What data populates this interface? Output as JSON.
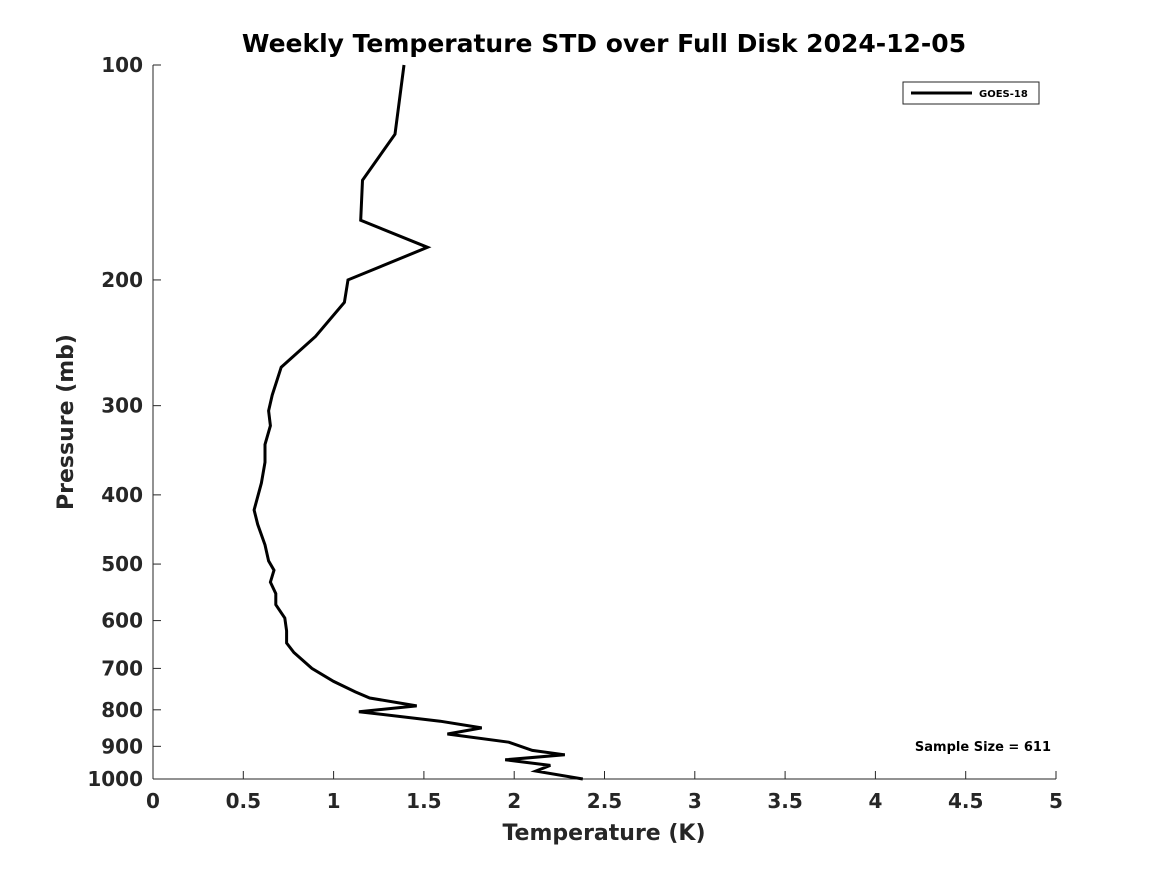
{
  "chart_data": {
    "type": "line",
    "title": "Weekly Temperature STD over Full Disk 2024-12-05",
    "xlabel": "Temperature (K)",
    "ylabel": "Pressure (mb)",
    "xlim": [
      0,
      5
    ],
    "ylim": [
      100,
      1000
    ],
    "y_scale": "log",
    "y_reversed": true,
    "x_ticks": [
      0,
      0.5,
      1,
      1.5,
      2,
      2.5,
      3,
      3.5,
      4,
      4.5,
      5
    ],
    "x_tick_labels": [
      "0",
      "0.5",
      "1",
      "1.5",
      "2",
      "2.5",
      "3",
      "3.5",
      "4",
      "4.5",
      "5"
    ],
    "y_ticks": [
      100,
      200,
      300,
      400,
      500,
      600,
      700,
      800,
      900,
      1000
    ],
    "y_tick_labels": [
      "100",
      "200",
      "300",
      "400",
      "500",
      "600",
      "700",
      "800",
      "900",
      "1000"
    ],
    "legend_position": "top-right",
    "annotation": "Sample Size = 611",
    "series": [
      {
        "name": "GOES-18",
        "color": "#000000",
        "points": [
          [
            1.39,
            100
          ],
          [
            1.34,
            125
          ],
          [
            1.16,
            145
          ],
          [
            1.15,
            165
          ],
          [
            1.52,
            180
          ],
          [
            1.08,
            200
          ],
          [
            1.06,
            215
          ],
          [
            0.9,
            240
          ],
          [
            0.71,
            265
          ],
          [
            0.66,
            290
          ],
          [
            0.64,
            305
          ],
          [
            0.65,
            320
          ],
          [
            0.62,
            340
          ],
          [
            0.62,
            360
          ],
          [
            0.6,
            385
          ],
          [
            0.56,
            420
          ],
          [
            0.58,
            440
          ],
          [
            0.62,
            470
          ],
          [
            0.64,
            495
          ],
          [
            0.67,
            510
          ],
          [
            0.65,
            530
          ],
          [
            0.68,
            550
          ],
          [
            0.68,
            570
          ],
          [
            0.73,
            595
          ],
          [
            0.74,
            620
          ],
          [
            0.74,
            645
          ],
          [
            0.78,
            665
          ],
          [
            0.88,
            700
          ],
          [
            1.0,
            730
          ],
          [
            1.12,
            755
          ],
          [
            1.2,
            770
          ],
          [
            1.46,
            790
          ],
          [
            1.14,
            805
          ],
          [
            1.59,
            830
          ],
          [
            1.82,
            848
          ],
          [
            1.63,
            865
          ],
          [
            1.97,
            888
          ],
          [
            2.1,
            912
          ],
          [
            2.28,
            925
          ],
          [
            1.95,
            940
          ],
          [
            2.2,
            957
          ],
          [
            2.12,
            975
          ],
          [
            2.38,
            1000
          ]
        ]
      }
    ]
  }
}
